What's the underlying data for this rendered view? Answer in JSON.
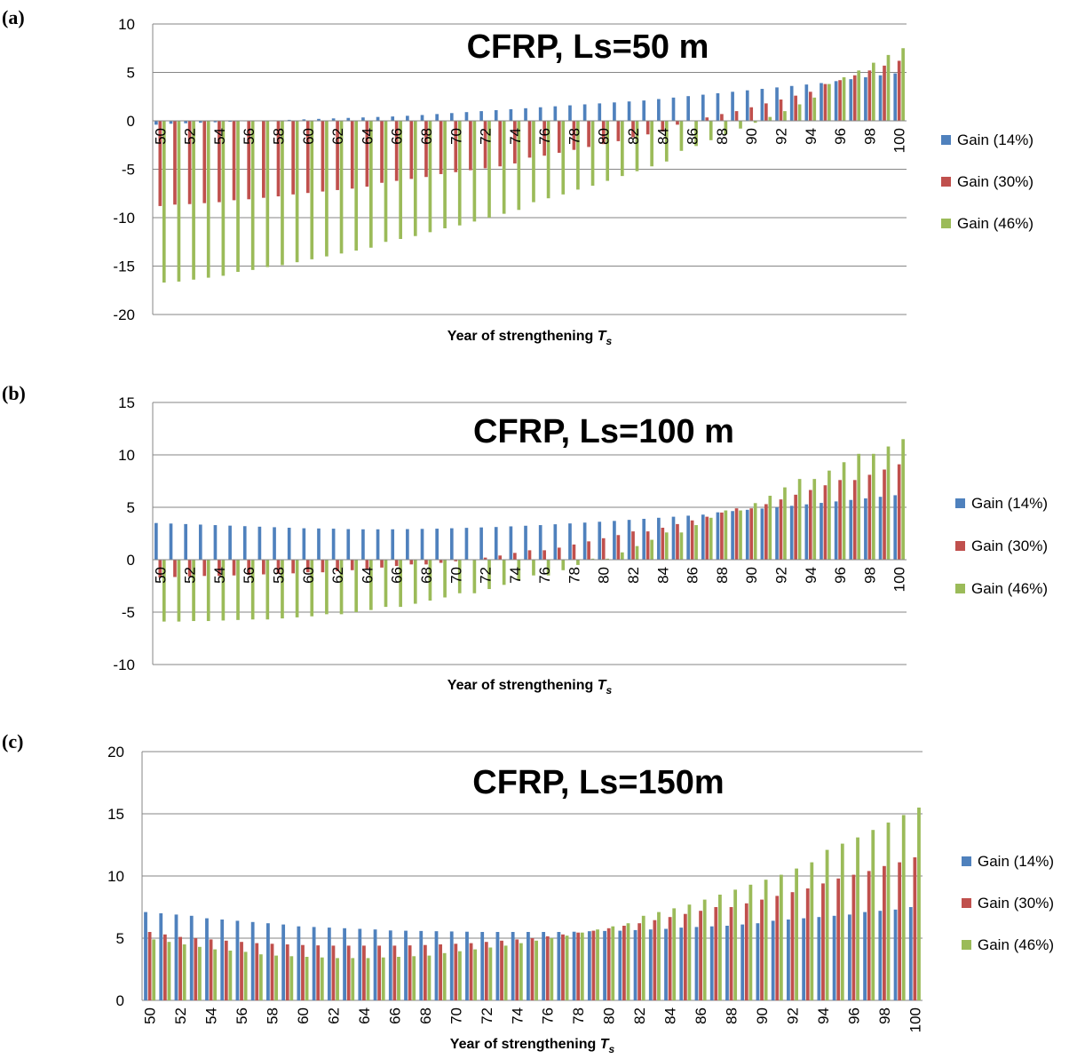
{
  "colors": {
    "series1": "#4f81bd",
    "series2": "#c0504d",
    "series3": "#9bbb59",
    "grid": "#868686",
    "axis": "#868686"
  },
  "chart_data": [
    {
      "panel_label": "(a)",
      "type": "bar",
      "title": "CFRP, Ls=50 m",
      "xlabel": "Year of strengthening",
      "xlabel_sub": "s",
      "xlabel_var": "T",
      "ylim": [
        -20,
        10
      ],
      "yticks": [
        10,
        5,
        0,
        -5,
        -10,
        -15,
        -20
      ],
      "grid": true,
      "legend_position": "right",
      "tick_labels": [
        "50",
        "52",
        "54",
        "56",
        "58",
        "60",
        "62",
        "64",
        "66",
        "68",
        "70",
        "72",
        "74",
        "76",
        "78",
        "80",
        "82",
        "84",
        "86",
        "88",
        "90",
        "92",
        "94",
        "96",
        "98",
        "100"
      ],
      "x_start": 50,
      "x_end": 100,
      "series": [
        {
          "name": "Gain (14%)",
          "values": [
            -0.4,
            -0.3,
            -0.25,
            -0.2,
            -0.15,
            -0.1,
            -0.05,
            0.0,
            0.05,
            0.1,
            0.15,
            0.2,
            0.25,
            0.3,
            0.35,
            0.4,
            0.45,
            0.52,
            0.6,
            0.7,
            0.8,
            0.9,
            1.0,
            1.1,
            1.2,
            1.3,
            1.4,
            1.5,
            1.6,
            1.7,
            1.8,
            1.9,
            2.0,
            2.1,
            2.25,
            2.4,
            2.55,
            2.7,
            2.85,
            3.0,
            3.15,
            3.3,
            3.45,
            3.6,
            3.75,
            3.9,
            4.1,
            4.3,
            4.5,
            4.7,
            4.9
          ]
        },
        {
          "name": "Gain (30%)",
          "values": [
            -8.8,
            -8.65,
            -8.6,
            -8.5,
            -8.4,
            -8.3,
            -8.2,
            -8.1,
            -7.95,
            -7.8,
            -7.6,
            -7.45,
            -7.3,
            -7.15,
            -7.0,
            -6.8,
            -6.6,
            -6.4,
            -6.2,
            -6.0,
            -5.8,
            -5.5,
            -5.3,
            -5.1,
            -4.9,
            -4.7,
            -4.4,
            -4.1,
            -3.8,
            -3.6,
            -3.3,
            -3.0,
            -2.7,
            -2.4,
            -2.1,
            -1.7,
            -1.4,
            -1.1,
            -0.7,
            -0.4,
            0.0,
            0.35,
            0.7,
            1.0,
            1.4,
            1.8,
            2.2,
            2.6,
            3.0,
            3.4,
            3.8,
            4.2,
            4.7,
            5.2,
            5.7,
            6.2
          ]
        },
        {
          "name": "Gain (46%)",
          "values": [
            -16.7,
            -16.6,
            -16.4,
            -16.2,
            -16.0,
            -15.8,
            -15.6,
            -15.4,
            -15.1,
            -14.9,
            -14.6,
            -14.3,
            -14.0,
            -13.7,
            -13.4,
            -13.1,
            -12.8,
            -12.5,
            -12.2,
            -11.9,
            -11.5,
            -11.1,
            -10.8,
            -10.4,
            -10.0,
            -9.6,
            -9.2,
            -8.8,
            -8.4,
            -8.0,
            -7.6,
            -7.1,
            -6.7,
            -6.2,
            -5.7,
            -5.2,
            -4.7,
            -4.2,
            -3.7,
            -3.1,
            -2.6,
            -2.0,
            -1.4,
            -0.8,
            -0.2,
            0.4,
            1.0,
            1.7,
            2.4,
            3.1,
            3.8,
            4.5,
            5.2,
            6.0,
            6.8,
            7.5
          ]
        }
      ]
    },
    {
      "panel_label": "(b)",
      "type": "bar",
      "title": "CFRP, Ls=100 m",
      "xlabel": "Year of strengthening",
      "xlabel_sub": "s",
      "xlabel_var": "T",
      "ylim": [
        -10,
        15
      ],
      "yticks": [
        15,
        10,
        5,
        0,
        -5,
        -10
      ],
      "grid": true,
      "legend_position": "right",
      "tick_labels": [
        "50",
        "52",
        "54",
        "56",
        "58",
        "60",
        "62",
        "64",
        "66",
        "68",
        "70",
        "72",
        "74",
        "76",
        "78",
        "80",
        "82",
        "84",
        "86",
        "88",
        "90",
        "92",
        "94",
        "96",
        "98",
        "100"
      ],
      "x_start": 50,
      "x_end": 100,
      "series": [
        {
          "name": "Gain (14%)",
          "values": [
            3.5,
            3.45,
            3.4,
            3.35,
            3.3,
            3.25,
            3.2,
            3.15,
            3.1,
            3.05,
            3.0,
            2.98,
            2.96,
            2.94,
            2.92,
            2.9,
            2.9,
            2.9,
            2.92,
            2.94,
            2.96,
            3.0,
            3.04,
            3.08,
            3.12,
            3.18,
            3.24,
            3.3,
            3.38,
            3.46,
            3.54,
            3.62,
            3.7,
            3.8,
            3.9,
            4.0,
            4.1,
            4.2,
            4.3,
            4.4,
            4.52,
            4.64,
            4.76,
            4.88,
            5.0,
            5.14,
            5.28,
            5.42,
            5.56,
            5.7,
            5.85,
            6.0,
            6.15
          ]
        },
        {
          "name": "Gain (30%)",
          "values": [
            -1.7,
            -1.65,
            -1.6,
            -1.55,
            -1.5,
            -1.45,
            -1.4,
            -1.35,
            -1.3,
            -1.2,
            -1.1,
            -1.0,
            -0.9,
            -0.75,
            -0.6,
            -0.45,
            -0.3,
            -0.15,
            0.0,
            0.2,
            0.4,
            0.65,
            0.9,
            1.15,
            1.45,
            1.75,
            2.05,
            2.35,
            2.7,
            3.05,
            3.4,
            3.75,
            4.1,
            4.5,
            4.9,
            5.3,
            5.75,
            6.2,
            6.65,
            7.1,
            7.6,
            8.1,
            8.6,
            9.1
          ]
        },
        {
          "name": "Gain (46%)",
          "values": [
            -5.9,
            -5.9,
            -5.85,
            -5.8,
            -5.75,
            -5.7,
            -5.6,
            -5.5,
            -5.4,
            -5.2,
            -5.0,
            -4.8,
            -4.5,
            -4.2,
            -3.9,
            -3.6,
            -3.2,
            -2.8,
            -2.4,
            -2.0,
            -1.5,
            -1.0,
            -0.5,
            0.1,
            0.7,
            1.3,
            1.9,
            2.6,
            3.3,
            4.0,
            4.7,
            5.4,
            6.1,
            6.9,
            7.7,
            8.5,
            9.3,
            10.1,
            10.8,
            11.5
          ]
        }
      ]
    },
    {
      "panel_label": "(c)",
      "type": "bar",
      "title": "CFRP, Ls=150m",
      "xlabel": "Year of strengthening",
      "xlabel_sub": "s",
      "xlabel_var": "T",
      "ylim": [
        0,
        20
      ],
      "yticks": [
        20,
        15,
        10,
        5,
        0
      ],
      "grid": true,
      "legend_position": "right",
      "tick_labels": [
        "50",
        "52",
        "54",
        "56",
        "58",
        "60",
        "62",
        "64",
        "66",
        "68",
        "70",
        "72",
        "74",
        "76",
        "78",
        "80",
        "82",
        "84",
        "86",
        "88",
        "90",
        "92",
        "94",
        "96",
        "98",
        "100"
      ],
      "x_start": 50,
      "x_end": 100,
      "series": [
        {
          "name": "Gain (14%)",
          "values": [
            7.1,
            7.0,
            6.9,
            6.8,
            6.7,
            6.6,
            6.5,
            6.4,
            6.3,
            6.2,
            6.1,
            6.0,
            5.95,
            5.9,
            5.85,
            5.8,
            5.75,
            5.7,
            5.65,
            5.62,
            5.6,
            5.58,
            5.56,
            5.54,
            5.52,
            5.5,
            5.5,
            5.5,
            5.5,
            5.5,
            5.5,
            5.5,
            5.52,
            5.54,
            5.56,
            5.58,
            5.6,
            5.65,
            5.7,
            5.75,
            5.8,
            5.85,
            5.9,
            5.95,
            6.0,
            6.1,
            6.2,
            6.3,
            6.4,
            6.5,
            6.6,
            6.7,
            6.8,
            6.9,
            7.0,
            7.1,
            7.2,
            7.3,
            7.5
          ]
        },
        {
          "name": "Gain (30%)",
          "values": [
            5.5,
            5.3,
            5.1,
            5.0,
            4.9,
            4.8,
            4.7,
            4.6,
            4.55,
            4.5,
            4.45,
            4.42,
            4.4,
            4.4,
            4.4,
            4.4,
            4.42,
            4.45,
            4.5,
            4.55,
            4.6,
            4.7,
            4.8,
            4.9,
            5.0,
            5.15,
            5.3,
            5.45,
            5.6,
            5.8,
            6.0,
            6.2,
            6.45,
            6.7,
            6.95,
            7.2,
            7.5,
            7.8,
            8.1,
            8.4,
            8.7,
            9.0,
            9.4,
            9.8,
            10.1,
            10.4,
            10.8,
            11.1,
            11.5
          ]
        },
        {
          "name": "Gain (46%)",
          "values": [
            4.9,
            4.7,
            4.5,
            4.3,
            4.1,
            4.0,
            3.9,
            3.8,
            3.7,
            3.6,
            3.55,
            3.5,
            3.45,
            3.4,
            3.4,
            3.4,
            3.45,
            3.5,
            3.55,
            3.6,
            3.7,
            3.8,
            3.95,
            4.1,
            4.25,
            4.4,
            4.6,
            4.8,
            5.0,
            5.2,
            5.45,
            5.7,
            5.95,
            6.2,
            6.5,
            6.8,
            7.1,
            7.4,
            7.7,
            8.1,
            8.5,
            8.9,
            9.3,
            9.7,
            10.1,
            10.6,
            11.1,
            11.6,
            12.1,
            12.6,
            13.1,
            13.7,
            14.3,
            14.9,
            15.5
          ]
        }
      ]
    }
  ]
}
